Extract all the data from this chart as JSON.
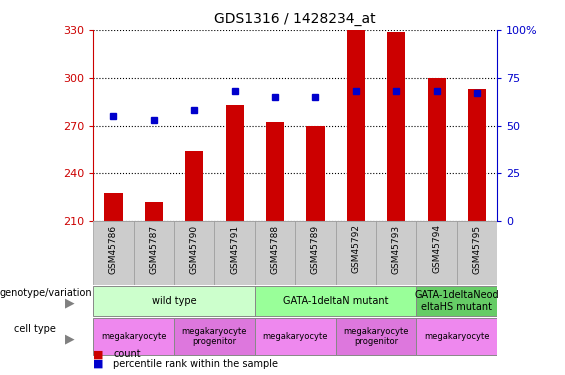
{
  "title": "GDS1316 / 1428234_at",
  "samples": [
    "GSM45786",
    "GSM45787",
    "GSM45790",
    "GSM45791",
    "GSM45788",
    "GSM45789",
    "GSM45792",
    "GSM45793",
    "GSM45794",
    "GSM45795"
  ],
  "counts": [
    228,
    222,
    254,
    283,
    272,
    270,
    330,
    329,
    300,
    293
  ],
  "percentile_ranks": [
    55,
    53,
    58,
    68,
    65,
    65,
    68,
    68,
    68,
    67
  ],
  "ylim_left": [
    210,
    330
  ],
  "ylim_right": [
    0,
    100
  ],
  "yticks_left": [
    210,
    240,
    270,
    300,
    330
  ],
  "yticks_right": [
    0,
    25,
    50,
    75,
    100
  ],
  "bar_color": "#cc0000",
  "dot_color": "#0000cc",
  "genotype_groups": [
    {
      "label": "wild type",
      "start": 0,
      "end": 4,
      "color": "#ccffcc"
    },
    {
      "label": "GATA-1deltaN mutant",
      "start": 4,
      "end": 8,
      "color": "#99ff99"
    },
    {
      "label": "GATA-1deltaNeod\neltaHS mutant",
      "start": 8,
      "end": 10,
      "color": "#66cc66"
    }
  ],
  "cell_type_groups": [
    {
      "label": "megakaryocyte",
      "start": 0,
      "end": 2,
      "color": "#ee88ee"
    },
    {
      "label": "megakaryocyte\nprogenitor",
      "start": 2,
      "end": 4,
      "color": "#dd77dd"
    },
    {
      "label": "megakaryocyte",
      "start": 4,
      "end": 6,
      "color": "#ee88ee"
    },
    {
      "label": "megakaryocyte\nprogenitor",
      "start": 6,
      "end": 8,
      "color": "#dd77dd"
    },
    {
      "label": "megakaryocyte",
      "start": 8,
      "end": 10,
      "color": "#ee88ee"
    }
  ],
  "left_label_color": "#cc0000",
  "right_label_color": "#0000cc",
  "grid_color": "#000000",
  "sample_box_color": "#cccccc",
  "sample_box_edge": "#999999",
  "genotype_label_left": "genotype/variation",
  "celltype_label_left": "cell type",
  "legend_count": "count",
  "legend_pct": "percentile rank within the sample"
}
